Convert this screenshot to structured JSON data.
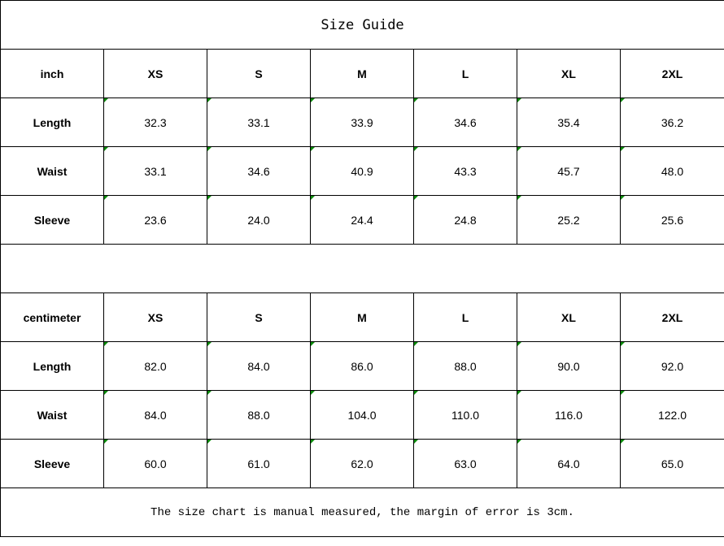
{
  "title": "Size Guide",
  "sizes": [
    "XS",
    "S",
    "M",
    "L",
    "XL",
    "2XL"
  ],
  "inch": {
    "unit_label": "inch",
    "rows": [
      {
        "label": "Length",
        "values": [
          "32.3",
          "33.1",
          "33.9",
          "34.6",
          "35.4",
          "36.2"
        ]
      },
      {
        "label": "Waist",
        "values": [
          "33.1",
          "34.6",
          "40.9",
          "43.3",
          "45.7",
          "48.0"
        ]
      },
      {
        "label": "Sleeve",
        "values": [
          "23.6",
          "24.0",
          "24.4",
          "24.8",
          "25.2",
          "25.6"
        ]
      }
    ]
  },
  "centimeter": {
    "unit_label": "centimeter",
    "rows": [
      {
        "label": "Length",
        "values": [
          "82.0",
          "84.0",
          "86.0",
          "88.0",
          "90.0",
          "92.0"
        ]
      },
      {
        "label": "Waist",
        "values": [
          "84.0",
          "88.0",
          "104.0",
          "110.0",
          "116.0",
          "122.0"
        ]
      },
      {
        "label": "Sleeve",
        "values": [
          "60.0",
          "61.0",
          "62.0",
          "63.0",
          "64.0",
          "65.0"
        ]
      }
    ]
  },
  "note": "The size chart is manual measured, the margin of error is 3cm.",
  "indicator_color": "#0a8a0a"
}
